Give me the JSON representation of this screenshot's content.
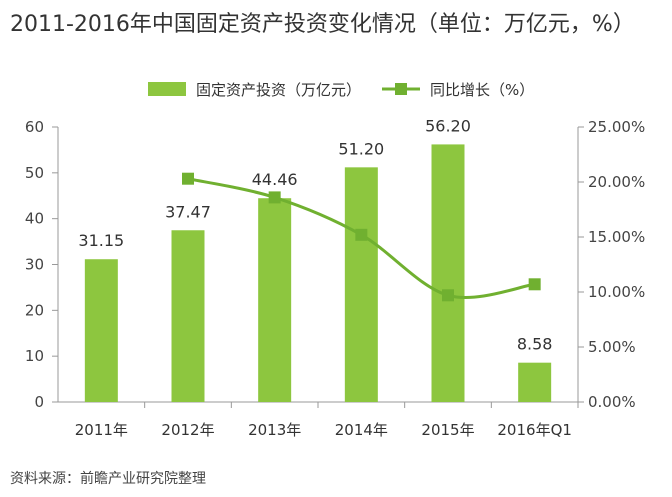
{
  "title": "2011-2016年中国固定资产投资变化情况（单位：万亿元，%）",
  "source": "资料来源：前瞻产业研究院整理",
  "colors": {
    "bar": "#8dc63f",
    "line": "#70b030",
    "axis": "#999999",
    "text": "#333333"
  },
  "chart_data": {
    "type": "bar",
    "categories": [
      "2011年",
      "2012年",
      "2013年",
      "2014年",
      "2015年",
      "2016年Q1"
    ],
    "series": [
      {
        "name": "固定资产投资（万亿元）",
        "type": "bar",
        "axis": "left",
        "values": [
          31.15,
          37.47,
          44.46,
          51.2,
          56.2,
          8.58
        ],
        "labels": [
          "31.15",
          "37.47",
          "44.46",
          "51.20",
          "56.20",
          "8.58"
        ]
      },
      {
        "name": "同比增长（%）",
        "type": "line",
        "axis": "right",
        "values": [
          null,
          20.3,
          18.6,
          15.2,
          9.7,
          10.7
        ]
      }
    ],
    "y_left": {
      "min": 0,
      "max": 60,
      "ticks": [
        "0",
        "10",
        "20",
        "30",
        "40",
        "50",
        "60"
      ]
    },
    "y_right": {
      "min": 0,
      "max": 25,
      "ticks": [
        "0.00%",
        "5.00%",
        "10.00%",
        "15.00%",
        "20.00%",
        "25.00%"
      ]
    },
    "legend": {
      "position": "top"
    },
    "grid": false
  }
}
